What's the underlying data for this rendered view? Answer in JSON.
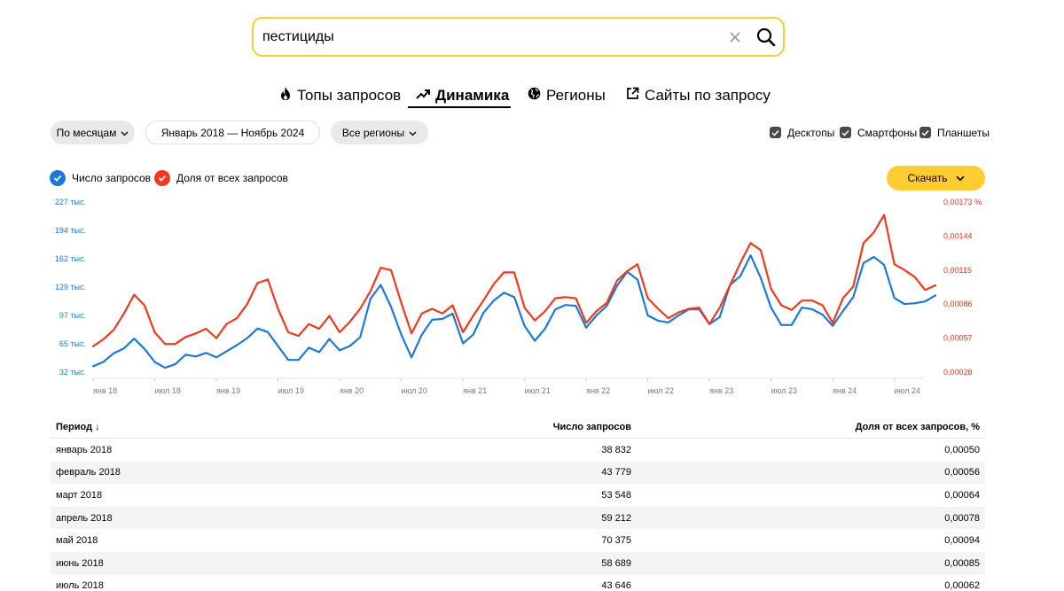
{
  "search": {
    "value": "пестициды",
    "placeholder": ""
  },
  "tabs": [
    {
      "label": "Топы запросов",
      "icon": "fire-icon",
      "active": false
    },
    {
      "label": "Динамика",
      "icon": "trend-icon",
      "active": true
    },
    {
      "label": "Регионы",
      "icon": "globe-icon",
      "active": false
    },
    {
      "label": "Сайты по запросу",
      "icon": "external-link-icon",
      "active": false
    }
  ],
  "filters": {
    "grouping": "По месяцам",
    "date_range": "Январь 2018 — Ноябрь 2024",
    "regions": "Все регионы"
  },
  "devices": [
    {
      "label": "Десктопы",
      "checked": true
    },
    {
      "label": "Смартфоны",
      "checked": true
    },
    {
      "label": "Планшеты",
      "checked": true
    }
  ],
  "legend": {
    "requests": "Число запросов",
    "share": "Доля от всех запросов"
  },
  "download_label": "Скачать",
  "colors": {
    "accent": "#ffcc33",
    "requests": "#1e78d8",
    "share": "#f0391e",
    "alt_row": "#f4f4f4"
  },
  "chart_data": {
    "type": "line",
    "x_tick_labels": [
      "янв 18",
      "июл 18",
      "янв 19",
      "июл 19",
      "янв 20",
      "июл 20",
      "янв 21",
      "июл 21",
      "янв 22",
      "июл 22",
      "янв 23",
      "июл 23",
      "янв 24",
      "июл 24"
    ],
    "y_left_ticks": [
      "227 тыс.",
      "194 тыс.",
      "162 тыс.",
      "129 тыс.",
      "97 тыс.",
      "65 тыс.",
      "32 тыс."
    ],
    "y_right_ticks": [
      "0,00173 %",
      "0,00144",
      "0,00115",
      "0,00086",
      "0,00057",
      "0,00028"
    ],
    "y_left_range": [
      32000,
      227000
    ],
    "y_right_range": [
      0.00028,
      0.00173
    ],
    "series": [
      {
        "name": "Число запросов",
        "axis": "left",
        "values": [
          38832,
          43779,
          53548,
          59212,
          70375,
          58689,
          43646,
          37000,
          41000,
          52000,
          50000,
          54000,
          49000,
          56000,
          63000,
          71000,
          82000,
          78000,
          62000,
          46000,
          46000,
          60000,
          55000,
          70000,
          57000,
          62000,
          72000,
          116000,
          132000,
          107000,
          75000,
          49000,
          75000,
          92000,
          93000,
          99000,
          65000,
          75000,
          100000,
          114000,
          123000,
          118000,
          85000,
          68000,
          82000,
          104000,
          109000,
          108000,
          83000,
          97000,
          108000,
          131000,
          147000,
          138000,
          97000,
          91000,
          89000,
          97000,
          104000,
          104000,
          87000,
          95000,
          132000,
          142000,
          166000,
          140000,
          106000,
          86000,
          86000,
          106000,
          104000,
          98000,
          85000,
          102000,
          118000,
          157000,
          164000,
          155000,
          117000,
          110000,
          111000,
          113000,
          120000
        ],
        "values_note": ""
      },
      {
        "name": "Доля от всех запросов",
        "axis": "right",
        "values": [
          0.0005,
          0.00056,
          0.00064,
          0.00078,
          0.00094,
          0.00085,
          0.00062,
          0.00052,
          0.00052,
          0.00058,
          0.00061,
          0.00065,
          0.00057,
          0.00069,
          0.00074,
          0.00086,
          0.00104,
          0.00107,
          0.00082,
          0.00062,
          0.00059,
          0.00069,
          0.00065,
          0.00076,
          0.00062,
          0.00071,
          0.00082,
          0.00097,
          0.00117,
          0.00115,
          0.00087,
          0.00061,
          0.00078,
          0.00082,
          0.00078,
          0.00085,
          0.00062,
          0.00076,
          0.00089,
          0.00103,
          0.00113,
          0.00113,
          0.00083,
          0.00072,
          0.0008,
          0.00091,
          0.00092,
          0.00091,
          0.0007,
          0.0008,
          0.00087,
          0.00106,
          0.00114,
          0.0012,
          0.00091,
          0.00082,
          0.00074,
          0.00079,
          0.00082,
          0.00083,
          0.00069,
          0.00083,
          0.00102,
          0.00121,
          0.00138,
          0.00132,
          0.00099,
          0.00085,
          0.00081,
          0.00089,
          0.00089,
          0.00085,
          0.0007,
          0.00091,
          0.00101,
          0.00138,
          0.00147,
          0.00162,
          0.0012,
          0.00115,
          0.00109,
          0.00098,
          0.00102
        ],
        "values_note": ""
      }
    ],
    "grid": false,
    "legend_position": "top-left"
  },
  "table": {
    "headers": {
      "period": "Период ↓",
      "requests": "Число запросов",
      "share": "Доля от всех запросов, %"
    },
    "rows": [
      {
        "period": "январь 2018",
        "requests": "38 832",
        "share": "0,00050"
      },
      {
        "period": "февраль 2018",
        "requests": "43 779",
        "share": "0,00056"
      },
      {
        "period": "март 2018",
        "requests": "53 548",
        "share": "0,00064"
      },
      {
        "period": "апрель 2018",
        "requests": "59 212",
        "share": "0,00078"
      },
      {
        "period": "май 2018",
        "requests": "70 375",
        "share": "0,00094"
      },
      {
        "period": "июнь 2018",
        "requests": "58 689",
        "share": "0,00085"
      },
      {
        "period": "июль 2018",
        "requests": "43 646",
        "share": "0,00062"
      }
    ]
  }
}
